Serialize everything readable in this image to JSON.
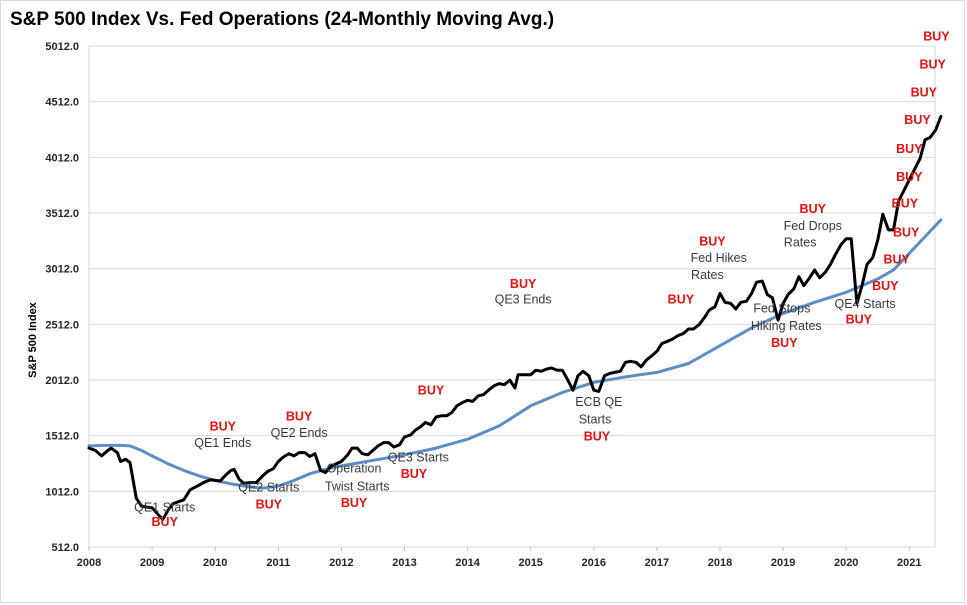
{
  "chart_data": {
    "type": "line",
    "title": "S&P 500 Index Vs. Fed Operations (24-Monthly Moving Avg.)",
    "xlabel": "",
    "ylabel": "S&P 500 Index",
    "x_ticks": [
      "2008",
      "2009",
      "2010",
      "2011",
      "2012",
      "2013",
      "2014",
      "2015",
      "2016",
      "2017",
      "2018",
      "2019",
      "2020",
      "2021"
    ],
    "y_ticks": [
      "512.0",
      "1012.0",
      "1512.0",
      "2012.0",
      "2512.0",
      "3012.0",
      "3512.0",
      "4012.0",
      "4512.0",
      "5012.0"
    ],
    "ylim": [
      512,
      5012
    ],
    "xlim": [
      2008,
      2021.5
    ],
    "grid": "horizontal",
    "colors": {
      "index": "#000000",
      "moving_avg": "#5b8ec4",
      "buy": "#e81010",
      "annotation": "#3a3a3a"
    },
    "series": [
      {
        "values": [
          [
            2008.0,
            1400
          ],
          [
            2008.1,
            1380
          ],
          [
            2008.2,
            1330
          ],
          [
            2008.3,
            1380
          ],
          [
            2008.35,
            1400
          ],
          [
            2008.45,
            1360
          ],
          [
            2008.5,
            1280
          ],
          [
            2008.58,
            1300
          ],
          [
            2008.65,
            1270
          ],
          [
            2008.75,
            950
          ],
          [
            2008.83,
            880
          ],
          [
            2008.92,
            870
          ],
          [
            2009.0,
            865
          ],
          [
            2009.1,
            800
          ],
          [
            2009.17,
            760
          ],
          [
            2009.25,
            840
          ],
          [
            2009.33,
            900
          ],
          [
            2009.42,
            920
          ],
          [
            2009.5,
            935
          ],
          [
            2009.6,
            1025
          ],
          [
            2009.75,
            1070
          ],
          [
            2009.83,
            1095
          ],
          [
            2009.92,
            1115
          ],
          [
            2010.0,
            1110
          ],
          [
            2010.08,
            1105
          ],
          [
            2010.17,
            1160
          ],
          [
            2010.25,
            1200
          ],
          [
            2010.3,
            1210
          ],
          [
            2010.38,
            1120
          ],
          [
            2010.45,
            1085
          ],
          [
            2010.55,
            1090
          ],
          [
            2010.65,
            1090
          ],
          [
            2010.75,
            1150
          ],
          [
            2010.83,
            1190
          ],
          [
            2010.92,
            1215
          ],
          [
            2011.0,
            1280
          ],
          [
            2011.08,
            1320
          ],
          [
            2011.17,
            1350
          ],
          [
            2011.25,
            1330
          ],
          [
            2011.33,
            1360
          ],
          [
            2011.42,
            1360
          ],
          [
            2011.5,
            1325
          ],
          [
            2011.58,
            1350
          ],
          [
            2011.67,
            1200
          ],
          [
            2011.75,
            1180
          ],
          [
            2011.83,
            1235
          ],
          [
            2011.92,
            1260
          ],
          [
            2012.0,
            1280
          ],
          [
            2012.1,
            1340
          ],
          [
            2012.17,
            1400
          ],
          [
            2012.25,
            1400
          ],
          [
            2012.33,
            1350
          ],
          [
            2012.42,
            1340
          ],
          [
            2012.5,
            1380
          ],
          [
            2012.58,
            1420
          ],
          [
            2012.67,
            1450
          ],
          [
            2012.75,
            1450
          ],
          [
            2012.83,
            1410
          ],
          [
            2012.92,
            1430
          ],
          [
            2013.0,
            1500
          ],
          [
            2013.1,
            1520
          ],
          [
            2013.17,
            1560
          ],
          [
            2013.25,
            1590
          ],
          [
            2013.33,
            1630
          ],
          [
            2013.42,
            1610
          ],
          [
            2013.5,
            1680
          ],
          [
            2013.58,
            1690
          ],
          [
            2013.67,
            1690
          ],
          [
            2013.75,
            1720
          ],
          [
            2013.83,
            1780
          ],
          [
            2013.92,
            1810
          ],
          [
            2014.0,
            1830
          ],
          [
            2014.08,
            1820
          ],
          [
            2014.17,
            1870
          ],
          [
            2014.25,
            1880
          ],
          [
            2014.33,
            1920
          ],
          [
            2014.42,
            1960
          ],
          [
            2014.5,
            1980
          ],
          [
            2014.58,
            1970
          ],
          [
            2014.67,
            2010
          ],
          [
            2014.75,
            1940
          ],
          [
            2014.8,
            2060
          ],
          [
            2014.92,
            2060
          ],
          [
            2015.0,
            2060
          ],
          [
            2015.08,
            2100
          ],
          [
            2015.17,
            2090
          ],
          [
            2015.25,
            2110
          ],
          [
            2015.33,
            2120
          ],
          [
            2015.42,
            2100
          ],
          [
            2015.5,
            2100
          ],
          [
            2015.58,
            2020
          ],
          [
            2015.67,
            1920
          ],
          [
            2015.75,
            2050
          ],
          [
            2015.83,
            2090
          ],
          [
            2015.92,
            2050
          ],
          [
            2016.0,
            1920
          ],
          [
            2016.08,
            1910
          ],
          [
            2016.17,
            2050
          ],
          [
            2016.25,
            2070
          ],
          [
            2016.33,
            2080
          ],
          [
            2016.42,
            2090
          ],
          [
            2016.5,
            2170
          ],
          [
            2016.58,
            2180
          ],
          [
            2016.67,
            2170
          ],
          [
            2016.75,
            2130
          ],
          [
            2016.83,
            2190
          ],
          [
            2016.92,
            2230
          ],
          [
            2017.0,
            2270
          ],
          [
            2017.08,
            2340
          ],
          [
            2017.17,
            2360
          ],
          [
            2017.25,
            2380
          ],
          [
            2017.33,
            2410
          ],
          [
            2017.42,
            2430
          ],
          [
            2017.5,
            2470
          ],
          [
            2017.58,
            2470
          ],
          [
            2017.67,
            2510
          ],
          [
            2017.75,
            2570
          ],
          [
            2017.83,
            2640
          ],
          [
            2017.92,
            2670
          ],
          [
            2018.0,
            2790
          ],
          [
            2018.08,
            2710
          ],
          [
            2018.17,
            2700
          ],
          [
            2018.25,
            2650
          ],
          [
            2018.33,
            2710
          ],
          [
            2018.42,
            2720
          ],
          [
            2018.5,
            2790
          ],
          [
            2018.58,
            2890
          ],
          [
            2018.67,
            2900
          ],
          [
            2018.75,
            2780
          ],
          [
            2018.83,
            2750
          ],
          [
            2018.92,
            2550
          ],
          [
            2019.0,
            2700
          ],
          [
            2019.08,
            2780
          ],
          [
            2019.17,
            2830
          ],
          [
            2019.25,
            2940
          ],
          [
            2019.33,
            2860
          ],
          [
            2019.42,
            2930
          ],
          [
            2019.5,
            3000
          ],
          [
            2019.58,
            2930
          ],
          [
            2019.67,
            2980
          ],
          [
            2019.75,
            3050
          ],
          [
            2019.83,
            3140
          ],
          [
            2019.92,
            3230
          ],
          [
            2020.0,
            3280
          ],
          [
            2020.08,
            3280
          ],
          [
            2020.17,
            2700
          ],
          [
            2020.25,
            2860
          ],
          [
            2020.33,
            3050
          ],
          [
            2020.42,
            3110
          ],
          [
            2020.5,
            3270
          ],
          [
            2020.58,
            3500
          ],
          [
            2020.67,
            3360
          ],
          [
            2020.75,
            3360
          ],
          [
            2020.83,
            3620
          ],
          [
            2020.92,
            3720
          ],
          [
            2021.0,
            3810
          ],
          [
            2021.08,
            3900
          ],
          [
            2021.17,
            4000
          ],
          [
            2021.25,
            4170
          ],
          [
            2021.33,
            4190
          ],
          [
            2021.42,
            4260
          ],
          [
            2021.5,
            4380
          ]
        ]
      },
      {
        "values": [
          [
            2008.0,
            1420
          ],
          [
            2008.25,
            1425
          ],
          [
            2008.5,
            1425
          ],
          [
            2008.65,
            1420
          ],
          [
            2008.83,
            1380
          ],
          [
            2009.0,
            1330
          ],
          [
            2009.25,
            1260
          ],
          [
            2009.5,
            1200
          ],
          [
            2009.75,
            1150
          ],
          [
            2010.0,
            1110
          ],
          [
            2010.25,
            1080
          ],
          [
            2010.5,
            1055
          ],
          [
            2010.75,
            1040
          ],
          [
            2011.0,
            1060
          ],
          [
            2011.25,
            1110
          ],
          [
            2011.5,
            1170
          ],
          [
            2011.75,
            1210
          ],
          [
            2012.0,
            1240
          ],
          [
            2012.5,
            1290
          ],
          [
            2013.0,
            1340
          ],
          [
            2013.5,
            1400
          ],
          [
            2014.0,
            1480
          ],
          [
            2014.5,
            1600
          ],
          [
            2015.0,
            1780
          ],
          [
            2015.5,
            1900
          ],
          [
            2016.0,
            1990
          ],
          [
            2016.5,
            2040
          ],
          [
            2017.0,
            2080
          ],
          [
            2017.5,
            2160
          ],
          [
            2018.0,
            2320
          ],
          [
            2018.5,
            2480
          ],
          [
            2019.0,
            2610
          ],
          [
            2019.5,
            2710
          ],
          [
            2020.0,
            2800
          ],
          [
            2020.25,
            2860
          ],
          [
            2020.5,
            2920
          ],
          [
            2020.75,
            3000
          ],
          [
            2021.0,
            3150
          ],
          [
            2021.25,
            3300
          ],
          [
            2021.5,
            3450
          ]
        ]
      }
    ],
    "annotations": [
      {
        "text": "QE1 Starts",
        "x": 2009.2,
        "y": 830,
        "style": "gray"
      },
      {
        "text": "BUY",
        "x": 2009.2,
        "y": 700,
        "style": "red"
      },
      {
        "text": "BUY",
        "x": 2010.12,
        "y": 1560,
        "style": "red"
      },
      {
        "text": "QE1 Ends",
        "x": 2010.12,
        "y": 1410,
        "style": "gray"
      },
      {
        "text": "QE2 Starts",
        "x": 2010.85,
        "y": 1010,
        "style": "gray"
      },
      {
        "text": "BUY",
        "x": 2010.85,
        "y": 860,
        "style": "red"
      },
      {
        "text": "BUY",
        "x": 2011.33,
        "y": 1650,
        "style": "red"
      },
      {
        "text": "QE2 Ends",
        "x": 2011.33,
        "y": 1500,
        "style": "gray"
      },
      {
        "text": "Operation",
        "x": 2012.2,
        "y": 1180,
        "style": "gray"
      },
      {
        "text": "Twist Starts",
        "x": 2012.25,
        "y": 1020,
        "style": "gray"
      },
      {
        "text": "BUY",
        "x": 2012.2,
        "y": 870,
        "style": "red"
      },
      {
        "text": "QE3 Starts",
        "x": 2013.22,
        "y": 1280,
        "style": "gray"
      },
      {
        "text": "BUY",
        "x": 2013.15,
        "y": 1130,
        "style": "red"
      },
      {
        "text": "BUY",
        "x": 2013.42,
        "y": 1880,
        "style": "red"
      },
      {
        "text": "BUY",
        "x": 2014.88,
        "y": 2840,
        "style": "red"
      },
      {
        "text": "QE3 Ends",
        "x": 2014.88,
        "y": 2700,
        "style": "gray"
      },
      {
        "text": "ECB QE",
        "x": 2016.08,
        "y": 1780,
        "style": "gray"
      },
      {
        "text": "Starts",
        "x": 2016.02,
        "y": 1620,
        "style": "gray"
      },
      {
        "text": "BUY",
        "x": 2016.05,
        "y": 1470,
        "style": "red"
      },
      {
        "text": "BUY",
        "x": 2017.38,
        "y": 2700,
        "style": "red"
      },
      {
        "text": "BUY",
        "x": 2017.88,
        "y": 3220,
        "style": "red"
      },
      {
        "text": "Fed Hikes",
        "x": 2017.98,
        "y": 3070,
        "style": "gray"
      },
      {
        "text": "Rates",
        "x": 2017.8,
        "y": 2920,
        "style": "gray"
      },
      {
        "text": "Fed Stops",
        "x": 2018.98,
        "y": 2620,
        "style": "gray"
      },
      {
        "text": "Hiking Rates",
        "x": 2019.05,
        "y": 2460,
        "style": "gray"
      },
      {
        "text": "BUY",
        "x": 2019.02,
        "y": 2310,
        "style": "red"
      },
      {
        "text": "BUY",
        "x": 2019.47,
        "y": 3510,
        "style": "red"
      },
      {
        "text": "Fed Drops",
        "x": 2019.47,
        "y": 3360,
        "style": "gray"
      },
      {
        "text": "Rates",
        "x": 2019.27,
        "y": 3210,
        "style": "gray"
      },
      {
        "text": "QE4 Starts",
        "x": 2020.3,
        "y": 2660,
        "style": "gray"
      },
      {
        "text": "BUY",
        "x": 2020.2,
        "y": 2520,
        "style": "red"
      },
      {
        "text": "BUY",
        "x": 2020.62,
        "y": 2820,
        "style": "red"
      },
      {
        "text": "BUY",
        "x": 2020.8,
        "y": 3060,
        "style": "red"
      },
      {
        "text": "BUY",
        "x": 2020.95,
        "y": 3300,
        "style": "red"
      },
      {
        "text": "BUY",
        "x": 2020.93,
        "y": 3560,
        "style": "red"
      },
      {
        "text": "BUY",
        "x": 2021.0,
        "y": 3800,
        "style": "red"
      },
      {
        "text": "BUY",
        "x": 2021.0,
        "y": 4050,
        "style": "red"
      },
      {
        "text": "BUY",
        "x": 2021.13,
        "y": 4310,
        "style": "red"
      },
      {
        "text": "BUY",
        "x": 2021.23,
        "y": 4560,
        "style": "red"
      },
      {
        "text": "BUY",
        "x": 2021.37,
        "y": 4810,
        "style": "red"
      },
      {
        "text": "BUY",
        "x": 2021.43,
        "y": 5060,
        "style": "red"
      }
    ]
  }
}
